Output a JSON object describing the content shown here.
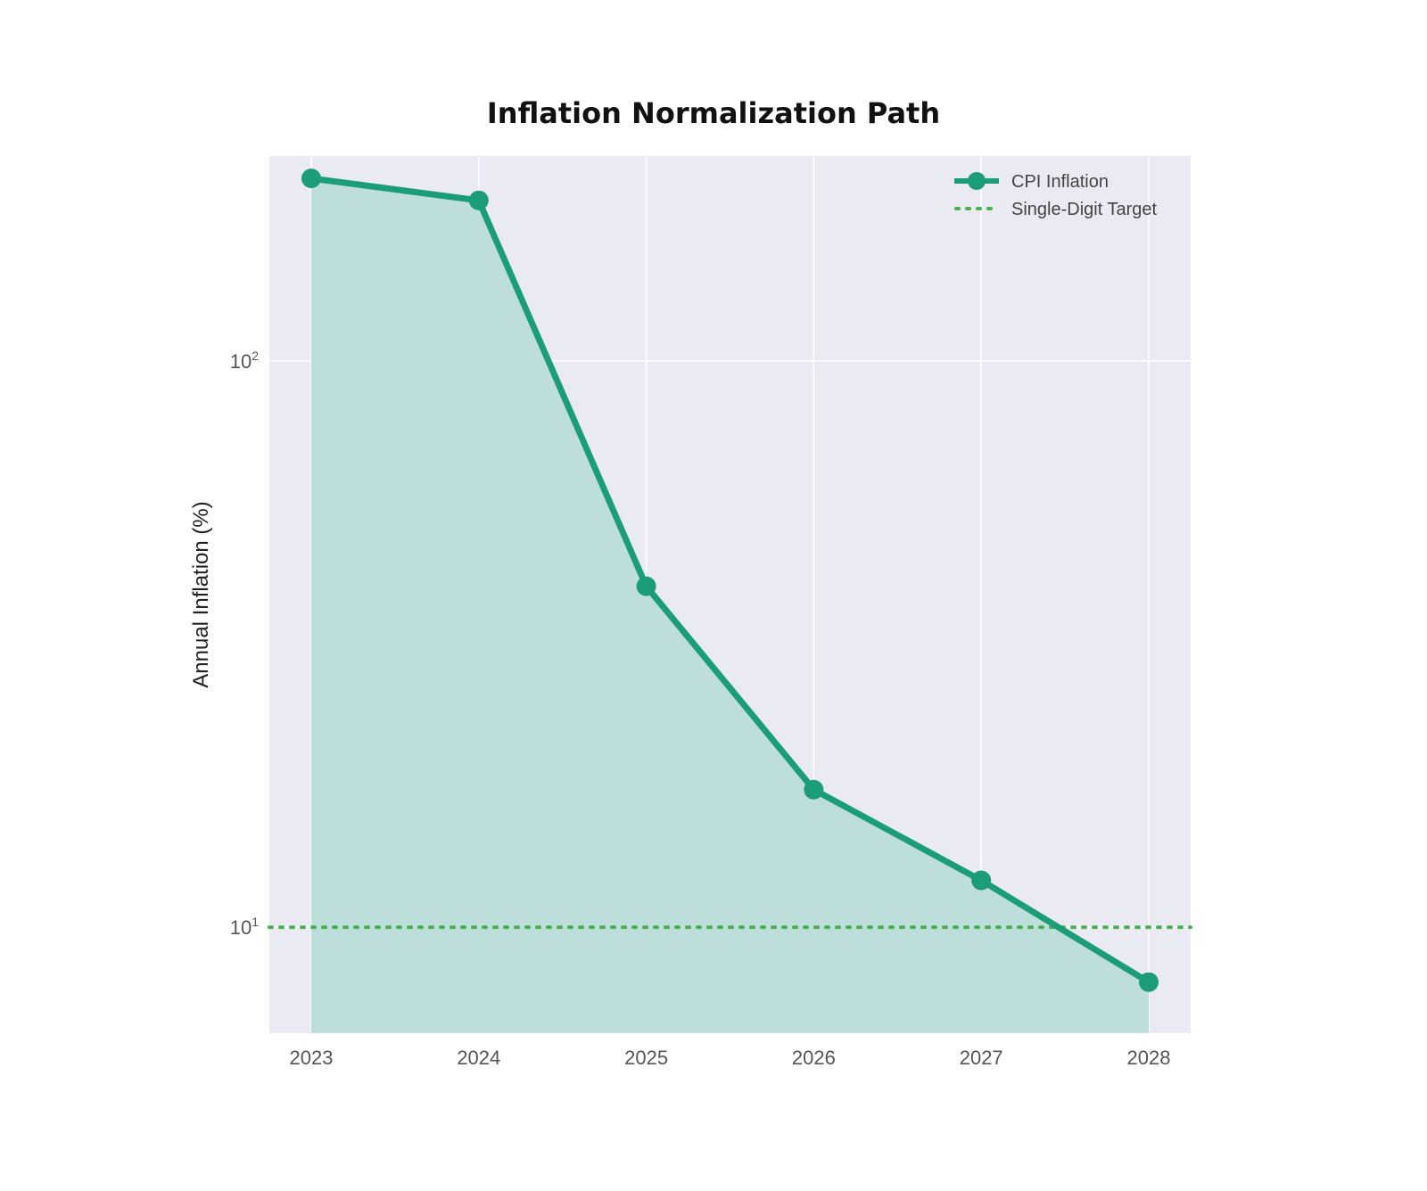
{
  "chart_data": {
    "type": "line",
    "title": "Inflation Normalization Path",
    "xlabel": "",
    "ylabel": "Annual Inflation (%)",
    "x": [
      "2023",
      "2024",
      "2025",
      "2026",
      "2027",
      "2028"
    ],
    "yscale": "log",
    "ylim": [
      6.5,
      230
    ],
    "yticks": [
      {
        "value": 10,
        "base": "10",
        "exp": "1"
      },
      {
        "value": 100,
        "base": "10",
        "exp": "2"
      }
    ],
    "series": [
      {
        "name": "CPI Inflation",
        "values": [
          210,
          192,
          40,
          17.5,
          12.1,
          8.0
        ],
        "color": "#1b9e77",
        "style": "solid line with circle markers, filled area below"
      },
      {
        "name": "Single-Digit Target",
        "values": [
          10,
          10,
          10,
          10,
          10,
          10
        ],
        "color": "#4caf50",
        "style": "dotted horizontal line"
      }
    ],
    "legend_position": "top-right",
    "grid": true,
    "colors": {
      "plot_background": "#eaeaf2",
      "area_fill": "#bddedb",
      "line": "#1b9e77",
      "target": "#4caf50"
    }
  }
}
